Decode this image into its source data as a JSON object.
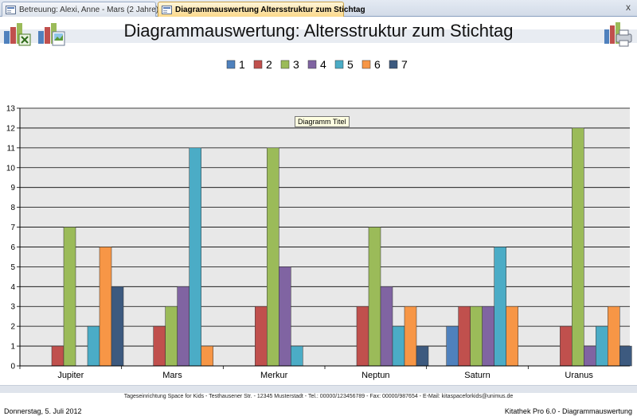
{
  "tabs": [
    {
      "label": "Betreuung:  Alexi, Anne - Mars (2 Jahre)"
    },
    {
      "label": "Diagrammauswertung Altersstruktur zum Stichtag"
    }
  ],
  "window": {
    "close_glyph": "x"
  },
  "header": {
    "title": "Diagrammauswertung: Altersstruktur zum Stichtag",
    "icons": [
      "excel-export-icon",
      "image-export-icon",
      "print-icon"
    ]
  },
  "tooltip": "Diagramm Titel",
  "footer": {
    "address": "Tageseinrichtung Space for Kids - Testhausener Str. - 12345 Musterstadt - Tel.: 00000/123456789 - Fax: 00000/987654 - E-Mail: kitaspaceforkids@unimus.de",
    "date": "Donnerstag, 5. Juli 2012",
    "app": "Kitathek Pro 6.0 - Diagrammauswertung"
  },
  "chart_data": {
    "type": "bar",
    "categories": [
      "Jupiter",
      "Mars",
      "Merkur",
      "Neptun",
      "Saturn",
      "Uranus"
    ],
    "series": [
      {
        "name": "1",
        "color": "#4f81bd",
        "values": [
          0,
          0,
          0,
          0,
          2,
          0
        ]
      },
      {
        "name": "2",
        "color": "#c0504d",
        "values": [
          1,
          2,
          3,
          3,
          3,
          2
        ]
      },
      {
        "name": "3",
        "color": "#9bbb59",
        "values": [
          7,
          3,
          11,
          7,
          3,
          12
        ]
      },
      {
        "name": "4",
        "color": "#8064a2",
        "values": [
          0,
          4,
          5,
          4,
          3,
          1
        ]
      },
      {
        "name": "5",
        "color": "#4bacc6",
        "values": [
          2,
          11,
          1,
          2,
          6,
          2
        ]
      },
      {
        "name": "6",
        "color": "#f79646",
        "values": [
          6,
          1,
          0,
          3,
          3,
          3
        ]
      },
      {
        "name": "7",
        "color": "#3d5a7f",
        "values": [
          4,
          0,
          0,
          1,
          0,
          1
        ]
      }
    ],
    "ylim": [
      0,
      13
    ],
    "yticks": [
      "0",
      "1",
      "2",
      "3",
      "4",
      "5",
      "6",
      "7",
      "8",
      "9",
      "10",
      "11",
      "12",
      "13"
    ],
    "grid": true,
    "legend": "top-center"
  }
}
